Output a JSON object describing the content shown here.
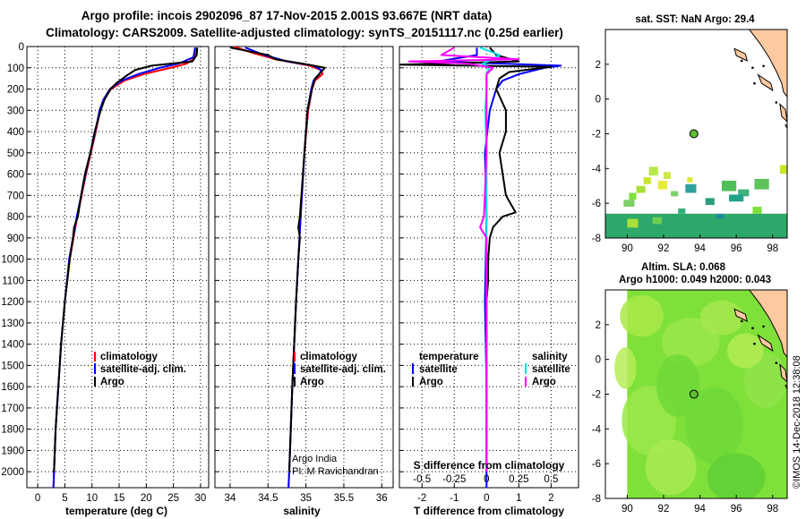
{
  "title_line1": "Argo profile: incois 2902096_87 17-Nov-2015 2.001S 93.667E (NRT data)",
  "title_line2": "Climatology: CARS2009. Satellite-adjusted climatology: synTS_20151117.nc (0.25d earlier)",
  "map_sst_title": "sat. SST: NaN Argo: 29.4",
  "map_sla_title1": "Altim. SLA: 0.068",
  "map_sla_title2": "Argo h1000: 0.049 h2000: 0.043",
  "credit": "©IMOS 14-Dec-2018 12:38:08",
  "pi_line1": "Argo India",
  "pi_line2": "PI: M Ravichandran",
  "colors": {
    "climatology": "#ff0000",
    "satellite": "#0000ff",
    "argo": "#000000",
    "sat_salinity": "#00e5e5",
    "argo_salinity": "#ff00ff",
    "land": "#ffc9a0",
    "sst_fill": "#2ea86a",
    "sla_fill": "#7fe03a"
  },
  "chart_data": [
    {
      "type": "line",
      "name": "temperature",
      "xlabel": "temperature (deg C)",
      "xlim": [
        -2,
        31.5
      ],
      "ylim": [
        2075,
        0
      ],
      "x_ticks": [
        0,
        5,
        10,
        15,
        20,
        25,
        30
      ],
      "x_tick_labels": [
        "0",
        "5",
        "10",
        "15",
        "20",
        "25",
        "30"
      ],
      "y_ticks": [
        0,
        100,
        200,
        300,
        400,
        500,
        600,
        700,
        800,
        900,
        1000,
        1100,
        1200,
        1300,
        1400,
        1500,
        1600,
        1700,
        1800,
        1900,
        2000
      ],
      "y_tick_labels": [
        "0",
        "100",
        "200",
        "300",
        "400",
        "500",
        "600",
        "700",
        "800",
        "900",
        "1000",
        "1100",
        "1200",
        "1300",
        "1400",
        "1500",
        "1600",
        "1700",
        "1800",
        "1900",
        "2000"
      ],
      "legend": [
        "climatology",
        "satellite-adj. clim.",
        "Argo"
      ],
      "series": [
        {
          "name": "climatology",
          "color": "#ff0000",
          "depth": [
            5,
            50,
            80,
            100,
            130,
            160,
            200,
            250,
            300,
            400,
            500,
            600,
            700,
            800,
            900,
            1000,
            1200,
            1400,
            1600,
            1800,
            2000,
            2075
          ],
          "values": [
            29.3,
            29.0,
            27.5,
            24.5,
            19.5,
            16.0,
            13.5,
            12.2,
            11.5,
            10.7,
            9.8,
            8.9,
            8.1,
            7.3,
            6.6,
            5.9,
            5.0,
            4.3,
            3.8,
            3.3,
            3.0,
            2.9
          ]
        },
        {
          "name": "satellite-adj. clim.",
          "color": "#0000ff",
          "depth": [
            5,
            50,
            80,
            100,
            130,
            160,
            200,
            250,
            300,
            400,
            500,
            600,
            700,
            800,
            900,
            1000,
            1200,
            1400,
            1600,
            1800,
            2000,
            2075
          ],
          "values": [
            29.0,
            28.7,
            26.0,
            22.5,
            18.5,
            15.5,
            13.3,
            12.1,
            11.4,
            10.6,
            9.7,
            8.8,
            8.0,
            7.2,
            6.5,
            5.8,
            5.0,
            4.3,
            3.8,
            3.3,
            3.0,
            2.9
          ]
        },
        {
          "name": "Argo",
          "color": "#000000",
          "depth": [
            5,
            40,
            70,
            90,
            110,
            140,
            170,
            200,
            250,
            300,
            400,
            500,
            600,
            700,
            800,
            850,
            900,
            1000,
            1200,
            1400,
            1600,
            1800,
            2000
          ],
          "values": [
            29.4,
            29.3,
            28.5,
            21.0,
            18.0,
            16.2,
            14.6,
            13.4,
            12.3,
            11.6,
            10.5,
            9.7,
            8.7,
            8.0,
            7.4,
            6.7,
            6.5,
            5.9,
            5.0,
            4.3,
            3.8,
            3.3,
            3.0
          ]
        }
      ]
    },
    {
      "type": "line",
      "name": "salinity",
      "xlabel": "salinity",
      "xlim": [
        33.8,
        36.15
      ],
      "ylim": [
        2075,
        0
      ],
      "x_ticks": [
        34,
        34.5,
        35,
        35.5,
        36
      ],
      "x_tick_labels": [
        "34",
        "34.5",
        "35",
        "35.5",
        "36"
      ],
      "legend": [
        "climatology",
        "satellite-adj. clim.",
        "Argo"
      ],
      "series": [
        {
          "name": "climatology",
          "color": "#ff0000",
          "depth": [
            0,
            30,
            60,
            90,
            110,
            130,
            160,
            200,
            300,
            500,
            800,
            1200,
            1600,
            2000,
            2075
          ],
          "values": [
            34.05,
            34.3,
            34.6,
            35.05,
            35.2,
            35.22,
            35.12,
            35.08,
            35.03,
            34.98,
            34.93,
            34.87,
            34.82,
            34.78,
            34.77
          ]
        },
        {
          "name": "satellite-adj. clim.",
          "color": "#0000ff",
          "depth": [
            5,
            40,
            70,
            90,
            110,
            130,
            160,
            200,
            300,
            500,
            800,
            1200,
            1600,
            2000,
            2075
          ],
          "values": [
            34.2,
            34.45,
            34.75,
            35.1,
            35.2,
            35.18,
            35.1,
            35.07,
            35.02,
            34.98,
            34.93,
            34.87,
            34.82,
            34.78,
            34.77
          ]
        },
        {
          "name": "Argo",
          "color": "#000000",
          "depth": [
            5,
            40,
            60,
            80,
            100,
            120,
            150,
            200,
            300,
            500,
            700,
            800,
            850,
            900,
            1000,
            1200,
            1600,
            2000
          ],
          "values": [
            34.0,
            34.5,
            34.6,
            34.95,
            35.25,
            35.2,
            35.12,
            35.08,
            35.02,
            34.98,
            34.94,
            34.92,
            34.9,
            34.92,
            34.9,
            34.87,
            34.82,
            34.78
          ]
        }
      ]
    },
    {
      "type": "line",
      "name": "difference",
      "xlabel": "T difference from climatology",
      "xlabel_top": "S difference from climatology",
      "xlim": [
        -2.7,
        2.85
      ],
      "ylim": [
        2075,
        0
      ],
      "x_ticks": [
        -2,
        -1,
        0,
        1,
        2
      ],
      "x_tick_labels": [
        "-2",
        "-1",
        "0",
        "1",
        "2"
      ],
      "s_ticks": [
        -0.5,
        -0.25,
        0,
        0.25,
        0.5
      ],
      "s_tick_labels": [
        "-0.5",
        "-0.25",
        "0",
        "0.25",
        "0.5"
      ],
      "s_scale": 4,
      "legend_temperature_title": "temperature",
      "legend_salinity_title": "salinity",
      "legend": [
        "satellite",
        "Argo"
      ],
      "series": [
        {
          "name": "T satellite",
          "color": "#0000ff",
          "depth": [
            5,
            40,
            70,
            90,
            100,
            130,
            160,
            200,
            300,
            500,
            800,
            1200,
            1600,
            2000,
            2075
          ],
          "values": [
            -0.3,
            -0.3,
            -1.5,
            2.3,
            1.8,
            1.0,
            0.5,
            0.3,
            0.1,
            -0.05,
            0,
            -0.05,
            0,
            0,
            0
          ]
        },
        {
          "name": "T Argo",
          "color": "#000000",
          "depth": [
            5,
            40,
            70,
            85,
            95,
            120,
            150,
            200,
            300,
            400,
            500,
            600,
            700,
            780,
            800,
            850,
            900,
            1000,
            1100,
            1200,
            1400,
            1600,
            1800,
            2000
          ],
          "values": [
            0.1,
            0.3,
            1.0,
            -2.7,
            2.0,
            0.7,
            0.4,
            0.3,
            0.6,
            0.6,
            0.4,
            0.5,
            0.6,
            0.9,
            0.5,
            0.2,
            0.1,
            0.05,
            0.05,
            0,
            0,
            0,
            0,
            0
          ]
        },
        {
          "name": "S satellite",
          "color": "#00e5e5",
          "depth": [
            5,
            40,
            60,
            80,
            100,
            130,
            200,
            300,
            500,
            800,
            1200,
            1600,
            2000
          ],
          "values": [
            -0.05,
            0.1,
            0.05,
            -0.03,
            0.02,
            0.0,
            0.0,
            -0.01,
            0.0,
            0.0,
            0.0,
            0.0,
            0.0
          ]
        },
        {
          "name": "S Argo",
          "color": "#ff00ff",
          "depth": [
            5,
            40,
            60,
            70,
            80,
            100,
            130,
            200,
            300,
            500,
            800,
            850,
            900,
            1000,
            1200,
            1600,
            2000
          ],
          "values": [
            -0.25,
            -0.35,
            0.25,
            -0.6,
            -0.15,
            0.05,
            0.0,
            0.0,
            0.0,
            0.0,
            -0.02,
            -0.05,
            0.0,
            0.0,
            0.0,
            0.0,
            0.0
          ]
        }
      ]
    },
    {
      "type": "heatmap",
      "name": "sst_map",
      "title": "sat. SST: NaN Argo: 29.4",
      "xlim": [
        88.8,
        98.8
      ],
      "ylim": [
        -8,
        4
      ],
      "x_ticks": [
        90,
        92,
        94,
        96,
        98
      ],
      "x_tick_labels": [
        "90",
        "92",
        "94",
        "96",
        "98"
      ],
      "y_ticks": [
        -8,
        -6,
        -4,
        -2,
        0,
        2
      ],
      "y_tick_labels": [
        "-8",
        "-6",
        "-4",
        "-2",
        "0",
        "2"
      ],
      "argo_position": [
        93.667,
        -2.001
      ]
    },
    {
      "type": "heatmap",
      "name": "sla_map",
      "title": "Altim. SLA: 0.068",
      "xlim": [
        88.8,
        98.8
      ],
      "ylim": [
        -8,
        4
      ],
      "x_ticks": [
        90,
        92,
        94,
        96,
        98
      ],
      "x_tick_labels": [
        "90",
        "92",
        "94",
        "96",
        "98"
      ],
      "y_ticks": [
        -8,
        -6,
        -4,
        -2,
        0,
        2
      ],
      "y_tick_labels": [
        "-8",
        "-6",
        "-4",
        "-2",
        "0",
        "2"
      ],
      "argo_position": [
        93.667,
        -2.001
      ]
    }
  ]
}
